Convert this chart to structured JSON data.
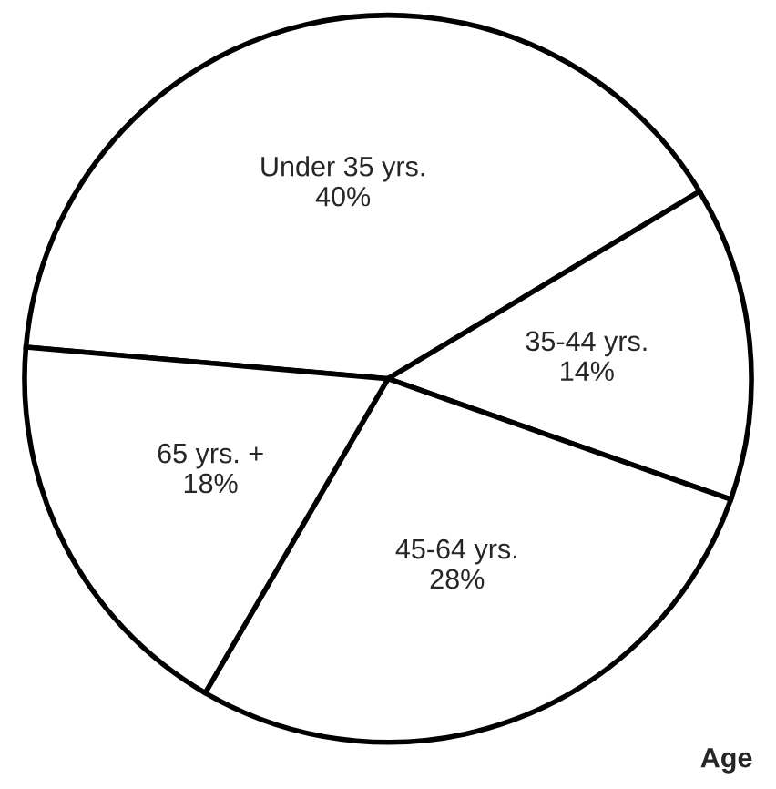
{
  "chart_data": {
    "type": "pie",
    "title": "Age",
    "categories": [
      "Under 35 yrs.",
      "35-44 yrs.",
      "45-64 yrs.",
      "65 yrs. +"
    ],
    "values": [
      40,
      14,
      28,
      18
    ],
    "value_labels": [
      "40%",
      "14%",
      "28%",
      "18%"
    ],
    "colors": [
      "#ffffff",
      "#ffffff",
      "#ffffff",
      "#ffffff"
    ],
    "legend": false
  }
}
